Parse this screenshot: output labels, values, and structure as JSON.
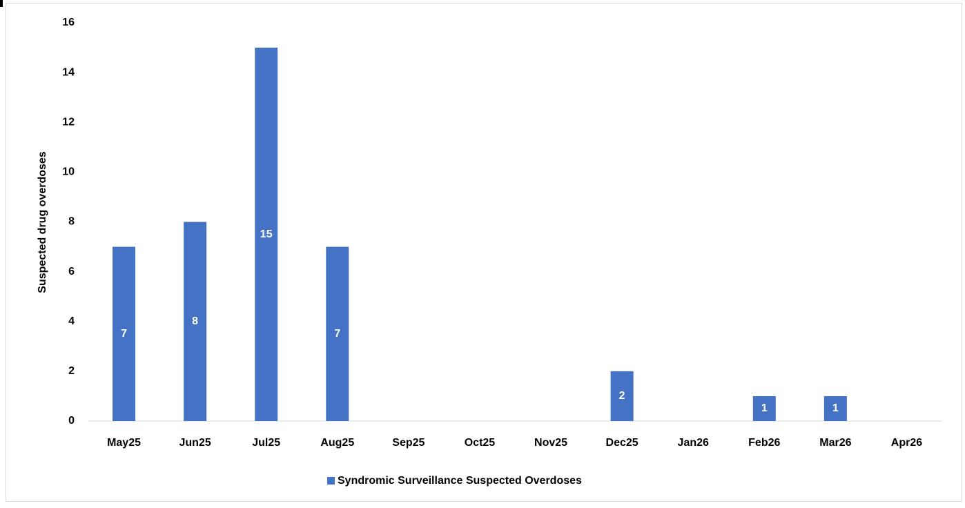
{
  "chart_data": {
    "type": "bar",
    "y_label": "Suspected drug overdoses",
    "categories": [
      "May25",
      "Jun25",
      "Jul25",
      "Aug25",
      "Sep25",
      "Oct25",
      "Nov25",
      "Dec25",
      "Jan26",
      "Feb26",
      "Mar26",
      "Apr26"
    ],
    "series": [
      {
        "name": "Syndromic Surveillance Suspected Overdoses",
        "color": "#4472c4",
        "values": [
          7,
          8,
          15,
          7,
          0,
          0,
          0,
          2,
          0,
          1,
          1,
          0
        ]
      }
    ],
    "ylim": [
      0,
      16
    ],
    "yticks": [
      0,
      2,
      4,
      6,
      8,
      10,
      12,
      14,
      16
    ],
    "grid": false,
    "legend": "bottom"
  }
}
